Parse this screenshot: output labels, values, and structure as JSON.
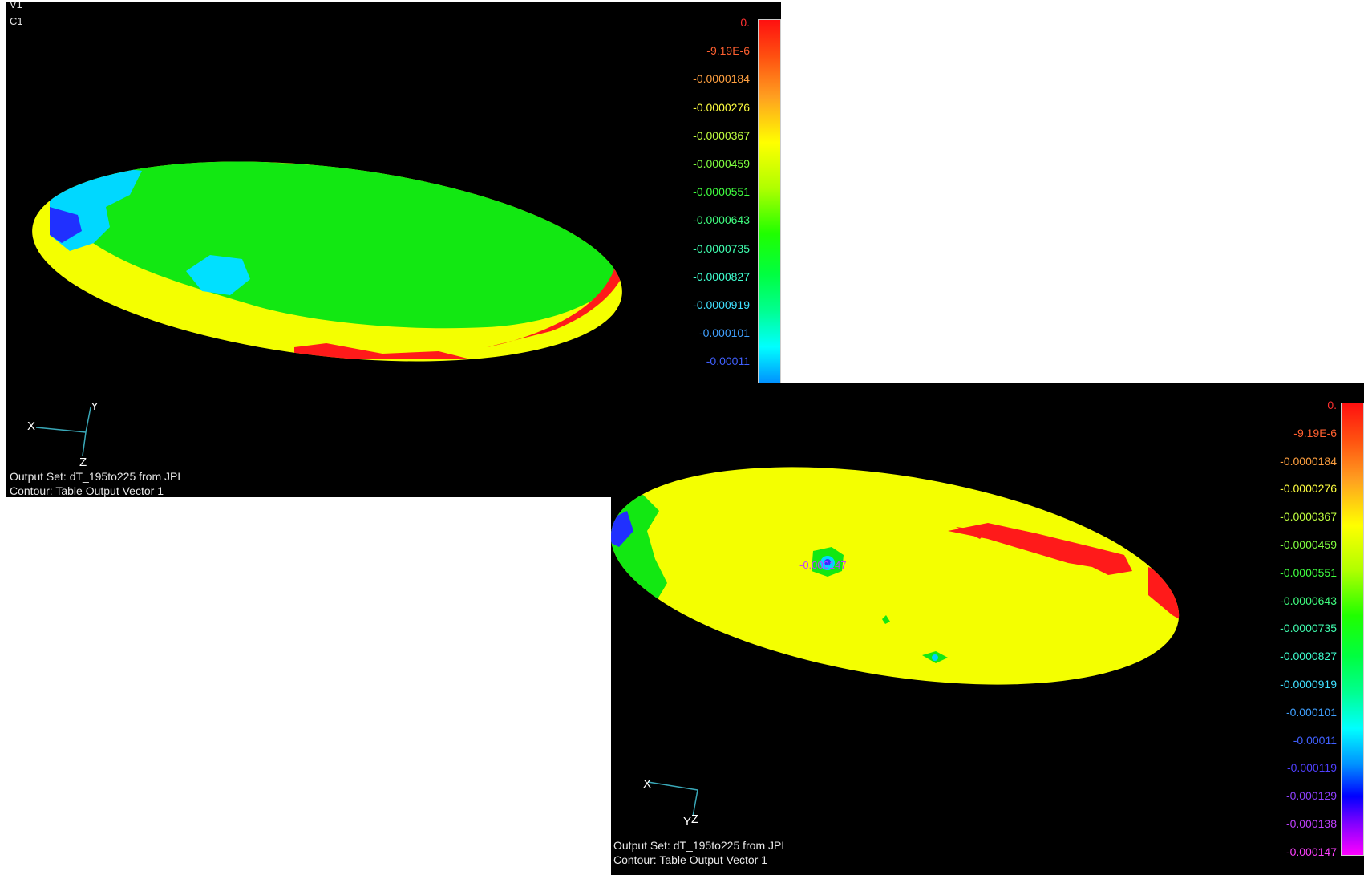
{
  "viewports": [
    {
      "id": "top-left",
      "view_label": "V1",
      "contour_label": "C1",
      "output_set": "Output Set: dT_195to225 from JPL",
      "contour": "Contour: Table Output Vector 1",
      "axes": {
        "x": "X",
        "y": "Y",
        "z": "Z"
      }
    },
    {
      "id": "bottom-right",
      "output_set": "Output Set: dT_195to225 from JPL",
      "contour": "Contour: Table Output Vector 1",
      "axes": {
        "x": "X",
        "y": "Y",
        "z": "Z"
      },
      "probe_value": "-0.000147"
    }
  ],
  "legend": {
    "labels": [
      {
        "text": "0.",
        "color": "#ff3030"
      },
      {
        "text": "-9.19E-6",
        "color": "#ff6030"
      },
      {
        "text": "-0.0000184",
        "color": "#ffa040"
      },
      {
        "text": "-0.0000276",
        "color": "#ffff40"
      },
      {
        "text": "-0.0000367",
        "color": "#c0ff40"
      },
      {
        "text": "-0.0000459",
        "color": "#80ff40"
      },
      {
        "text": "-0.0000551",
        "color": "#40ff40"
      },
      {
        "text": "-0.0000643",
        "color": "#40ff80"
      },
      {
        "text": "-0.0000735",
        "color": "#40ffb0"
      },
      {
        "text": "-0.0000827",
        "color": "#40ffd0"
      },
      {
        "text": "-0.0000919",
        "color": "#40e0ff"
      },
      {
        "text": "-0.000101",
        "color": "#40a0ff"
      },
      {
        "text": "-0.00011",
        "color": "#4060ff"
      },
      {
        "text": "-0.000119",
        "color": "#5040ff"
      },
      {
        "text": "-0.000129",
        "color": "#9040ff"
      },
      {
        "text": "-0.000138",
        "color": "#c040ff"
      },
      {
        "text": "-0.000147",
        "color": "#ff40ff"
      }
    ]
  },
  "colors": {
    "background": "#000000",
    "page": "#ffffff",
    "red": "#ff1a1a",
    "yellow": "#f4ff00",
    "green": "#12e812",
    "cyan": "#00e0ff",
    "blue": "#1a20ff"
  }
}
